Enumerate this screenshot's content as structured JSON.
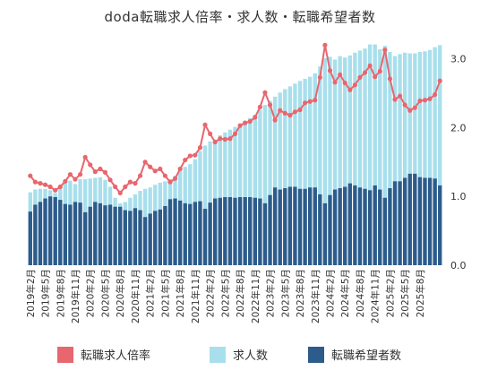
{
  "chart_data": {
    "type": "bar+line",
    "title": "doda転職求人倍率・求人数・転職希望者数",
    "ylim": [
      0.0,
      3.4
    ],
    "yticks": [
      "0.0",
      "1.0",
      "2.0",
      "3.0"
    ],
    "grid": false,
    "legend_position": "bottom",
    "x_tick_labels": [
      "2019年2月",
      "2019年5月",
      "2019年8月",
      "2019年11月",
      "2020年2月",
      "2020年5月",
      "2020年8月",
      "2020年11月",
      "2021年2月",
      "2021年5月",
      "2021年8月",
      "2021年11月",
      "2022年2月",
      "2022年5月",
      "2022年8月",
      "2022年11月",
      "2023年2月",
      "2023年5月",
      "2023年8月",
      "2023年11月",
      "2024年2月",
      "2024年5月",
      "2024年8月",
      "2024年11月",
      "2025年2月",
      "2025年5月",
      "2025年8月"
    ],
    "series": [
      {
        "name": "転職求人倍率",
        "type": "line",
        "color": "#e8666e",
        "values": [
          1.3,
          1.21,
          1.19,
          1.17,
          1.14,
          1.09,
          1.14,
          1.22,
          1.32,
          1.25,
          1.32,
          1.57,
          1.46,
          1.36,
          1.4,
          1.35,
          1.24,
          1.14,
          1.05,
          1.14,
          1.21,
          1.19,
          1.3,
          1.5,
          1.43,
          1.37,
          1.4,
          1.3,
          1.21,
          1.26,
          1.4,
          1.53,
          1.59,
          1.6,
          1.71,
          2.04,
          1.91,
          1.79,
          1.84,
          1.83,
          1.84,
          1.91,
          2.03,
          2.07,
          2.09,
          2.15,
          2.3,
          2.51,
          2.33,
          2.11,
          2.25,
          2.21,
          2.18,
          2.23,
          2.26,
          2.36,
          2.38,
          2.4,
          2.73,
          3.2,
          2.83,
          2.66,
          2.77,
          2.65,
          2.55,
          2.62,
          2.73,
          2.8,
          2.9,
          2.74,
          2.82,
          3.13,
          2.71,
          2.41,
          2.46,
          2.33,
          2.25,
          2.29,
          2.39,
          2.4,
          2.42,
          2.48,
          2.68
        ]
      },
      {
        "name": "求人数",
        "type": "bar",
        "color": "#a8dfec",
        "values": [
          1.06,
          1.1,
          1.11,
          1.11,
          1.09,
          1.05,
          1.14,
          1.19,
          1.23,
          1.18,
          1.25,
          1.25,
          1.26,
          1.27,
          1.28,
          1.24,
          1.14,
          0.98,
          0.9,
          0.92,
          0.98,
          1.03,
          1.08,
          1.11,
          1.13,
          1.17,
          1.2,
          1.22,
          1.25,
          1.3,
          1.37,
          1.43,
          1.47,
          1.54,
          1.66,
          1.74,
          1.8,
          1.83,
          1.89,
          1.93,
          1.97,
          2.01,
          2.06,
          2.1,
          2.14,
          2.19,
          2.26,
          2.33,
          2.39,
          2.45,
          2.51,
          2.56,
          2.6,
          2.64,
          2.68,
          2.71,
          2.74,
          2.79,
          2.89,
          3.01,
          3.03,
          2.99,
          3.04,
          3.02,
          3.05,
          3.09,
          3.12,
          3.15,
          3.21,
          3.21,
          3.14,
          3.19,
          3.1,
          3.04,
          3.07,
          3.09,
          3.08,
          3.08,
          3.1,
          3.11,
          3.13,
          3.17,
          3.2
        ]
      },
      {
        "name": "転職希望者数",
        "type": "bar",
        "color": "#2d5b8b",
        "values": [
          0.78,
          0.88,
          0.92,
          0.97,
          1.0,
          0.99,
          0.95,
          0.89,
          0.88,
          0.92,
          0.91,
          0.77,
          0.85,
          0.92,
          0.9,
          0.87,
          0.88,
          0.85,
          0.85,
          0.8,
          0.79,
          0.83,
          0.8,
          0.7,
          0.75,
          0.79,
          0.81,
          0.86,
          0.96,
          0.97,
          0.94,
          0.9,
          0.89,
          0.92,
          0.93,
          0.82,
          0.91,
          0.97,
          0.98,
          0.99,
          0.99,
          0.98,
          0.99,
          0.99,
          0.99,
          0.98,
          0.97,
          0.9,
          1.02,
          1.13,
          1.1,
          1.12,
          1.14,
          1.14,
          1.11,
          1.11,
          1.13,
          1.13,
          1.03,
          0.9,
          1.02,
          1.1,
          1.12,
          1.14,
          1.19,
          1.16,
          1.13,
          1.11,
          1.09,
          1.16,
          1.1,
          0.98,
          1.12,
          1.22,
          1.22,
          1.27,
          1.33,
          1.33,
          1.28,
          1.27,
          1.27,
          1.26,
          1.16
        ]
      }
    ]
  }
}
